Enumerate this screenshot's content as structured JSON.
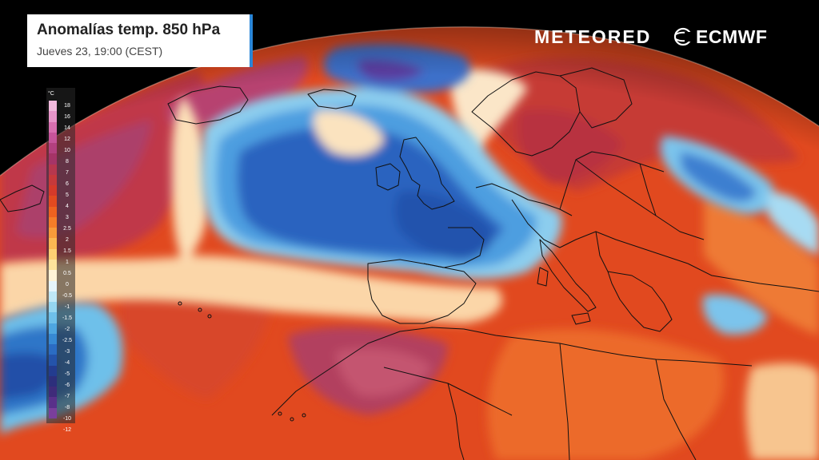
{
  "title": "Anomalías temp. 850 hPa",
  "subtitle": "Jueves 23, 19:00 (CEST)",
  "brand_left": "METEORED",
  "brand_right": "ECMWF",
  "legend": {
    "unit": "°C",
    "labels": [
      "18",
      "16",
      "14",
      "12",
      "10",
      "8",
      "7",
      "6",
      "5",
      "4",
      "3",
      "2.5",
      "2",
      "1.5",
      "1",
      "0.5",
      "0",
      "-0.5",
      "-1",
      "-1.5",
      "-2",
      "-2.5",
      "-3",
      "-4",
      "-5",
      "-6",
      "-7",
      "-8",
      "-10",
      "-12"
    ],
    "colors": [
      "#f2b9dd",
      "#e794c9",
      "#d86fb0",
      "#c6549a",
      "#b3407f",
      "#a53467",
      "#b7374e",
      "#c7393b",
      "#d63a2a",
      "#e34a20",
      "#ee6220",
      "#f57d29",
      "#f89a3a",
      "#fbb752",
      "#fcd073",
      "#fde39c",
      "#fff3d6",
      "#e6f5fb",
      "#bfe8f6",
      "#95d6f0",
      "#6ec0ea",
      "#4ea6e1",
      "#3789d4",
      "#2b6cc3",
      "#2453aa",
      "#233c8f",
      "#2d2f7c",
      "#3f2b7a",
      "#59308a",
      "#7a3f9c"
    ]
  },
  "colors": {
    "warm_main": "#e1491f",
    "warm_deep": "#c43a2e",
    "warm_purple": "#b04670",
    "cold_main": "#2a64bf",
    "cold_light": "#8ccdee",
    "neutral": "#f6efe6",
    "accent": "#2a86d8"
  },
  "icons": {
    "ecmwf": "ecmwf-logo-icon"
  }
}
